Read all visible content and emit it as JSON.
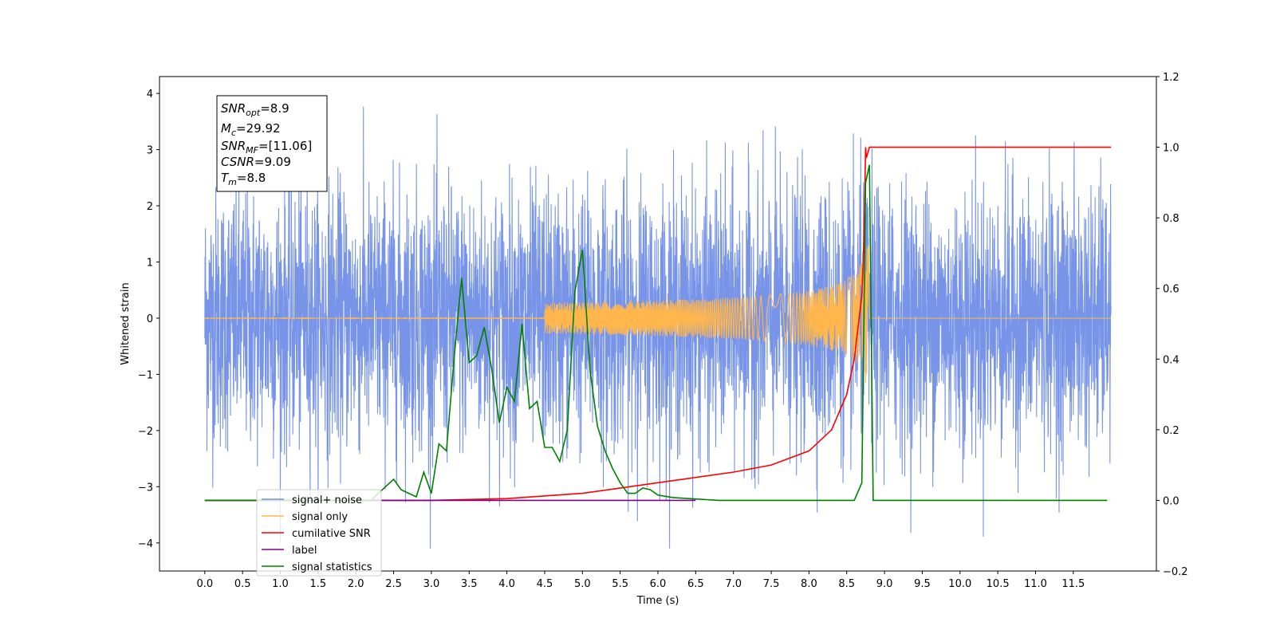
{
  "chart_data": {
    "type": "line",
    "xlabel": "Time (s)",
    "ylabel": "Whitened strain",
    "xlim": [
      -0.6,
      12.6
    ],
    "ylim": [
      -4.5,
      4.3
    ],
    "y2lim": [
      -0.2,
      1.2
    ],
    "grid": false,
    "legend_position": "lower-left",
    "x_ticks": [
      "0.0",
      "0.5",
      "1.0",
      "1.5",
      "2.0",
      "2.5",
      "3.0",
      "3.5",
      "4.0",
      "4.5",
      "5.0",
      "5.5",
      "6.0",
      "6.5",
      "7.0",
      "7.5",
      "8.0",
      "8.5",
      "9.0",
      "9.5",
      "10.0",
      "10.5",
      "11.0",
      "11.5"
    ],
    "y_ticks": [
      "4",
      "3",
      "2",
      "1",
      "0",
      "−1",
      "−2",
      "−3",
      "−4"
    ],
    "y2_ticks": [
      "1.2",
      "1.0",
      "0.8",
      "0.6",
      "0.4",
      "0.2",
      "0.0",
      "−0.2"
    ],
    "info_box": {
      "snr_opt": {
        "base": "SNR",
        "sub": "opt",
        "value": "=8.9"
      },
      "mc": {
        "base": "M",
        "sub": "c",
        "value": "=29.92"
      },
      "snr_mf": {
        "base": "SNR",
        "sub": "MF",
        "value": "=[11.06]"
      },
      "csnr": {
        "base": "CSNR",
        "sub": "",
        "value": "=9.09"
      },
      "tm": {
        "base": "T",
        "sub": "m",
        "value": "=8.8"
      }
    },
    "series": [
      {
        "name": "signal+ noise",
        "color": "#7794e8",
        "axis": "left",
        "kind": "noise",
        "x_range": [
          0.0,
          12.0
        ],
        "amplitude_core": 2.1,
        "peak_max": 3.9,
        "peak_min": -4.1
      },
      {
        "name": "signal only",
        "color": "#ffb74d",
        "axis": "left",
        "kind": "chirp",
        "x_range": [
          0.0,
          12.0
        ],
        "merger_time": 8.8,
        "peak_amplitude": 1.3
      },
      {
        "name": "cumilative SNR",
        "color": "#ff0000",
        "axis": "right",
        "x": [
          0.0,
          3.0,
          4.0,
          5.0,
          6.0,
          7.0,
          7.5,
          8.0,
          8.3,
          8.5,
          8.6,
          8.7,
          8.73,
          8.75,
          8.76,
          8.8,
          9.0,
          10.0,
          11.0,
          12.0
        ],
        "y": [
          0.0,
          0.0,
          0.005,
          0.02,
          0.05,
          0.08,
          0.1,
          0.14,
          0.2,
          0.3,
          0.4,
          0.58,
          0.75,
          1.0,
          0.97,
          1.0,
          1.0,
          1.0,
          1.0,
          1.0
        ]
      },
      {
        "name": "label",
        "color": "#800080",
        "axis": "right",
        "x": [
          0.0,
          6.5
        ],
        "y": [
          0.0,
          0.0
        ]
      },
      {
        "name": "signal statistics",
        "color": "#008000",
        "axis": "right",
        "x": [
          0.0,
          2.2,
          2.3,
          2.4,
          2.5,
          2.6,
          2.7,
          2.8,
          2.9,
          3.0,
          3.1,
          3.2,
          3.3,
          3.4,
          3.5,
          3.6,
          3.7,
          3.8,
          3.9,
          4.0,
          4.1,
          4.2,
          4.3,
          4.4,
          4.5,
          4.6,
          4.7,
          4.8,
          4.9,
          5.0,
          5.1,
          5.2,
          5.3,
          5.4,
          5.5,
          5.6,
          5.7,
          5.8,
          5.9,
          6.0,
          6.2,
          6.5,
          6.8,
          7.0,
          8.0,
          8.6,
          8.7,
          8.75,
          8.8,
          8.85,
          9.0,
          10.0,
          11.0,
          11.95
        ],
        "y": [
          0.0,
          0.0,
          0.02,
          0.04,
          0.06,
          0.03,
          0.02,
          0.01,
          0.08,
          0.02,
          0.16,
          0.14,
          0.4,
          0.63,
          0.39,
          0.41,
          0.49,
          0.37,
          0.22,
          0.32,
          0.28,
          0.5,
          0.26,
          0.28,
          0.15,
          0.15,
          0.11,
          0.2,
          0.59,
          0.71,
          0.37,
          0.21,
          0.14,
          0.09,
          0.05,
          0.02,
          0.02,
          0.035,
          0.03,
          0.015,
          0.008,
          0.004,
          0.0,
          0.0,
          0.0,
          0.0,
          0.05,
          0.9,
          0.95,
          0.0,
          0.0,
          0.0,
          0.0,
          0.0
        ]
      }
    ]
  }
}
